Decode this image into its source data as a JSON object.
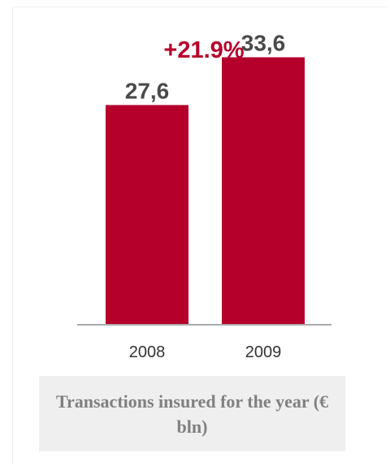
{
  "chart_data": {
    "type": "bar",
    "categories": [
      "2008",
      "2009"
    ],
    "values": [
      27.6,
      33.6
    ],
    "value_labels": [
      "27,6",
      "33,6"
    ],
    "growth_label": "+21.9%",
    "caption": "Transactions insured for the year (€ bln)",
    "ylim": [
      0,
      36
    ],
    "grid": false,
    "colors": {
      "bar": "#b5002b",
      "arrow": "#cc4f4f",
      "growth_text": "#b5002b",
      "value_text": "#4a4a4a",
      "tick_text": "#333333",
      "axis": "#aaaaaa"
    }
  }
}
